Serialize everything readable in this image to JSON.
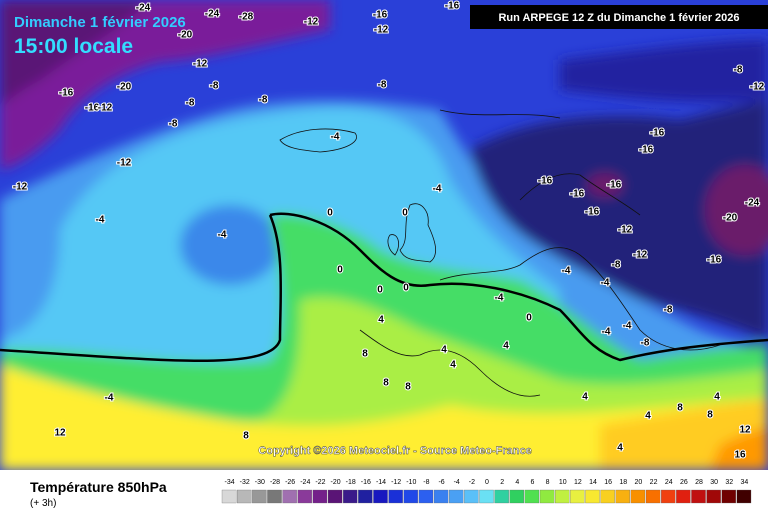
{
  "header": {
    "date": "Dimanche 1 février 2026",
    "time": "15:00 locale",
    "run": "Run ARPEGE 12 Z du Dimanche 1 février 2026"
  },
  "copyright": "Copyright ©2026 Meteociel.fr - Source Meteo-France",
  "contour_labels": [
    -24,
    -20,
    -28,
    -24,
    -12,
    -16,
    -12,
    -16,
    -12,
    -8,
    -20,
    -16,
    -16,
    -12,
    -8,
    -8,
    -8,
    -8,
    -12,
    -12,
    -4,
    -4,
    -4,
    -4,
    0,
    0,
    0,
    0,
    0,
    -4,
    0,
    4,
    8,
    4,
    4,
    8,
    8,
    -4,
    12,
    8,
    4,
    -16,
    -16,
    -16,
    -16,
    -16,
    -16,
    -12,
    -12,
    -8,
    -4,
    -4,
    -4,
    -8,
    -8,
    -4,
    -16,
    -20,
    -24,
    -8,
    -12,
    4,
    4,
    8,
    12,
    16,
    4,
    4,
    8
  ],
  "footer": {
    "title": "Température 850hPa",
    "subtitle": "(+ 3h)"
  },
  "scale": {
    "values": [
      -34,
      -32,
      -30,
      -28,
      -26,
      -24,
      -22,
      -20,
      -18,
      -16,
      -14,
      -12,
      -10,
      -8,
      -6,
      -4,
      -2,
      0,
      2,
      4,
      6,
      8,
      10,
      12,
      14,
      16,
      18,
      20,
      22,
      24,
      26,
      28,
      30,
      32,
      34
    ],
    "colors": [
      "#d8d8d8",
      "#b8b8b8",
      "#989898",
      "#787878",
      "#a070b0",
      "#8a3a9a",
      "#74208a",
      "#5a1476",
      "#3a1a8a",
      "#2020a0",
      "#1818c0",
      "#1a30d8",
      "#2048e8",
      "#2c60f0",
      "#3a80f0",
      "#4aa0f4",
      "#5ac0f8",
      "#6ae0f4",
      "#30d0a0",
      "#30d060",
      "#50e050",
      "#90ea40",
      "#c0f040",
      "#e8f040",
      "#f8e830",
      "#f8d020",
      "#f8b010",
      "#f89000",
      "#f87000",
      "#f04010",
      "#e02010",
      "#c01010",
      "#a00808",
      "#700000",
      "#400000"
    ]
  }
}
